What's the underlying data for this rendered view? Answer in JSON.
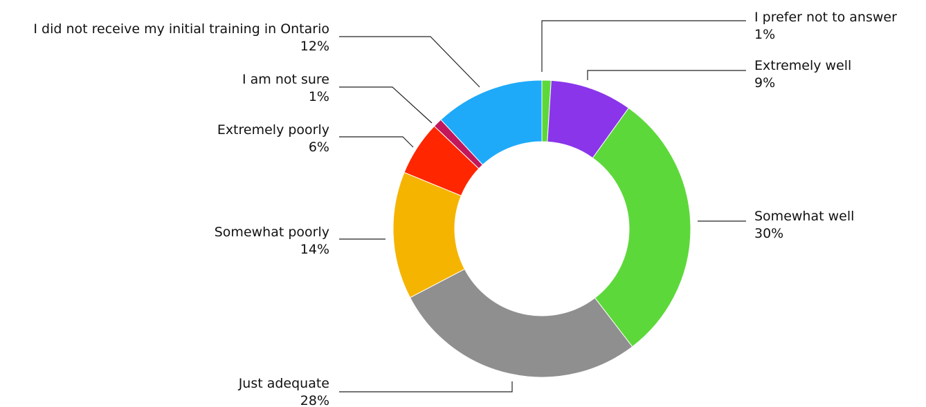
{
  "chart_data": {
    "type": "pie",
    "donut": true,
    "legend": "none",
    "slices": [
      {
        "label": "I prefer not to answer",
        "value": 1,
        "display": "1%",
        "color": "#5dd83a"
      },
      {
        "label": "Extremely well",
        "value": 9,
        "display": "9%",
        "color": "#8a35ea"
      },
      {
        "label": "Somewhat well",
        "value": 30,
        "display": "30%",
        "color": "#5dd83a"
      },
      {
        "label": "Just adequate",
        "value": 28,
        "display": "28%",
        "color": "#8f8f8f"
      },
      {
        "label": "Somewhat poorly",
        "value": 14,
        "display": "14%",
        "color": "#f5b400"
      },
      {
        "label": "Extremely poorly",
        "value": 6,
        "display": "6%",
        "color": "#ff2600"
      },
      {
        "label": "I am not sure",
        "value": 1,
        "display": "1%",
        "color": "#c2185b"
      },
      {
        "label": "I did not receive my initial training in Ontario",
        "value": 12,
        "display": "12%",
        "color": "#1eaaf9"
      }
    ]
  }
}
